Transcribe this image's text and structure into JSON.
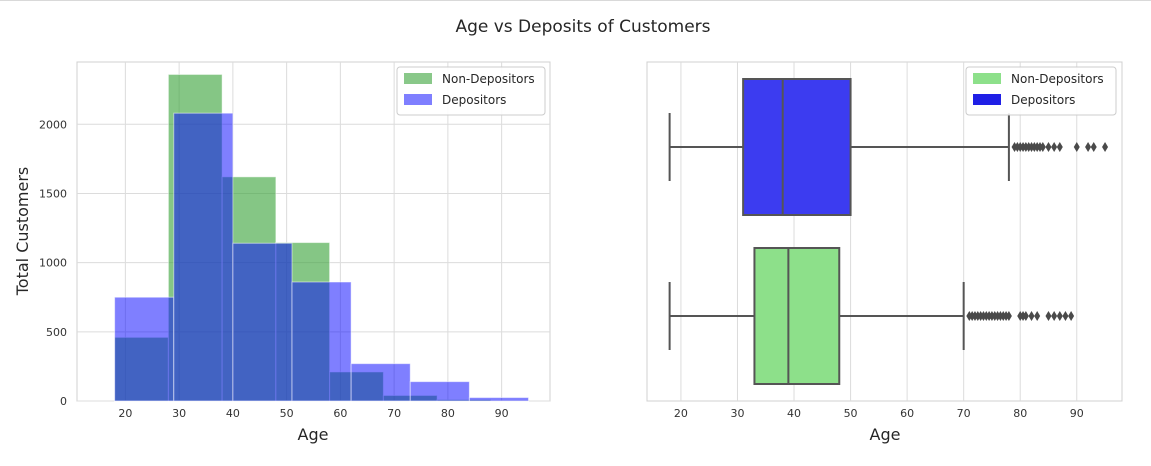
{
  "title": "Age vs Deposits of Customers",
  "colors": {
    "non_depositors_hist": "#3aa33a",
    "depositors_hist": "#0000ff",
    "non_depositors_box": "#8de08a",
    "depositors_box": "#3c3cf0",
    "grid": "#dcdcdc",
    "whisker": "#555555"
  },
  "chart_data": [
    {
      "type": "bar",
      "subtype": "histogram",
      "xlabel": "Age",
      "ylabel": "Total Customers",
      "xlim": [
        11,
        99
      ],
      "ylim": [
        0,
        2450
      ],
      "xticks": [
        20,
        30,
        40,
        50,
        60,
        70,
        80,
        90
      ],
      "yticks": [
        0,
        500,
        1000,
        1500,
        2000
      ],
      "grid": true,
      "legend": "top-right",
      "series": [
        {
          "name": "Non-Depositors",
          "bins": [
            [
              18,
              28
            ],
            [
              28,
              38
            ],
            [
              38,
              48
            ],
            [
              48,
              58
            ],
            [
              58,
              68
            ],
            [
              68,
              78
            ],
            [
              78,
              88
            ],
            [
              88,
              95
            ]
          ],
          "values": [
            460,
            2360,
            1620,
            1145,
            210,
            40,
            10,
            2
          ]
        },
        {
          "name": "Depositors",
          "bins": [
            [
              18,
              29
            ],
            [
              29,
              40
            ],
            [
              40,
              51
            ],
            [
              51,
              62
            ],
            [
              62,
              73
            ],
            [
              73,
              84
            ],
            [
              84,
              95
            ]
          ],
          "values": [
            750,
            2080,
            1140,
            860,
            270,
            140,
            25
          ]
        }
      ]
    },
    {
      "type": "box",
      "xlabel": "Age",
      "xlim": [
        14,
        98
      ],
      "xticks": [
        20,
        30,
        40,
        50,
        60,
        70,
        80,
        90
      ],
      "grid": true,
      "legend": "top-right",
      "series": [
        {
          "name": "Depositors",
          "min": 18,
          "q1": 31,
          "median": 38,
          "q3": 50,
          "max": 78,
          "outliers": [
            79,
            79.5,
            80,
            80.5,
            81,
            81.5,
            82,
            82.5,
            83,
            83.5,
            84,
            85,
            86,
            87,
            90,
            92,
            93,
            95
          ]
        },
        {
          "name": "Non-Depositors",
          "min": 18,
          "q1": 33,
          "median": 39,
          "q3": 48,
          "max": 70,
          "outliers": [
            71,
            71.5,
            72,
            72.5,
            73,
            73.5,
            74,
            74.5,
            75,
            75.5,
            76,
            76.5,
            77,
            77.5,
            78,
            80,
            80.5,
            81,
            82,
            83,
            85,
            86,
            87,
            88,
            89
          ]
        }
      ]
    }
  ]
}
